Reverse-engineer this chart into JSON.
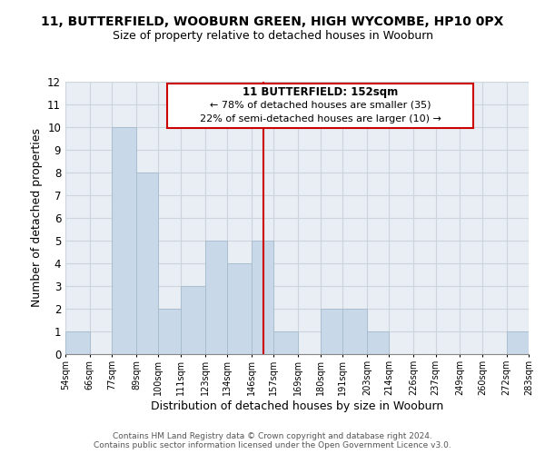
{
  "title_line1": "11, BUTTERFIELD, WOOBURN GREEN, HIGH WYCOMBE, HP10 0PX",
  "title_line2": "Size of property relative to detached houses in Wooburn",
  "xlabel": "Distribution of detached houses by size in Wooburn",
  "ylabel": "Number of detached properties",
  "footer_line1": "Contains HM Land Registry data © Crown copyright and database right 2024.",
  "footer_line2": "Contains public sector information licensed under the Open Government Licence v3.0.",
  "annotation_line1": "11 BUTTERFIELD: 152sqm",
  "annotation_line2": "← 78% of detached houses are smaller (35)",
  "annotation_line3": "22% of semi-detached houses are larger (10) →",
  "bar_edges": [
    54,
    66,
    77,
    89,
    100,
    111,
    123,
    134,
    146,
    157,
    169,
    180,
    191,
    203,
    214,
    226,
    237,
    249,
    260,
    272,
    283
  ],
  "bar_heights": [
    1,
    0,
    10,
    8,
    2,
    3,
    5,
    4,
    5,
    1,
    0,
    2,
    2,
    1,
    0,
    0,
    0,
    0,
    0,
    1
  ],
  "bar_color": "#c8d8e8",
  "bar_edgecolor": "#a8bece",
  "reference_x": 152,
  "reference_line_color": "#cc0000",
  "ylim": [
    0,
    12
  ],
  "xlim": [
    54,
    283
  ],
  "bg_color": "#ffffff",
  "plot_bg_color": "#e8eef4",
  "grid_color": "#ccd4dc",
  "tick_labels": [
    "54sqm",
    "66sqm",
    "77sqm",
    "89sqm",
    "100sqm",
    "111sqm",
    "123sqm",
    "134sqm",
    "146sqm",
    "157sqm",
    "169sqm",
    "180sqm",
    "191sqm",
    "203sqm",
    "214sqm",
    "226sqm",
    "237sqm",
    "249sqm",
    "260sqm",
    "272sqm",
    "283sqm"
  ]
}
